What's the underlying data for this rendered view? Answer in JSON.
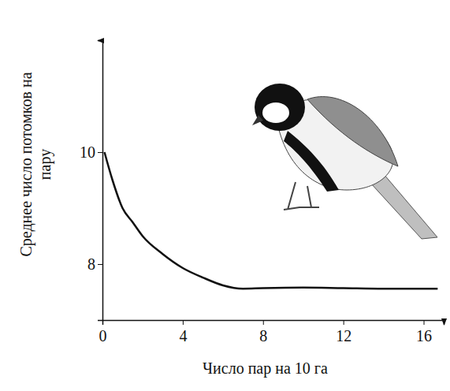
{
  "chart_data": {
    "type": "line",
    "x_label": "Число пар на 10 га",
    "y_label": "Среднее число потомков на пару",
    "x": [
      0.1,
      0.5,
      1,
      1.5,
      2,
      3,
      4,
      5,
      6,
      7,
      8,
      10,
      12,
      14,
      16.7
    ],
    "series": [
      {
        "name": "Среднее число потомков на пару",
        "color": "#111111",
        "values": [
          10,
          9.5,
          9.0,
          8.75,
          8.5,
          8.18,
          7.93,
          7.76,
          7.62,
          7.56,
          7.57,
          7.58,
          7.57,
          7.56,
          7.56
        ]
      }
    ],
    "xlim": [
      0,
      17
    ],
    "xticks": [
      0,
      4,
      8,
      12,
      16
    ],
    "ylim": [
      7,
      12
    ],
    "yticks": [
      8,
      10
    ],
    "grid": false
  }
}
